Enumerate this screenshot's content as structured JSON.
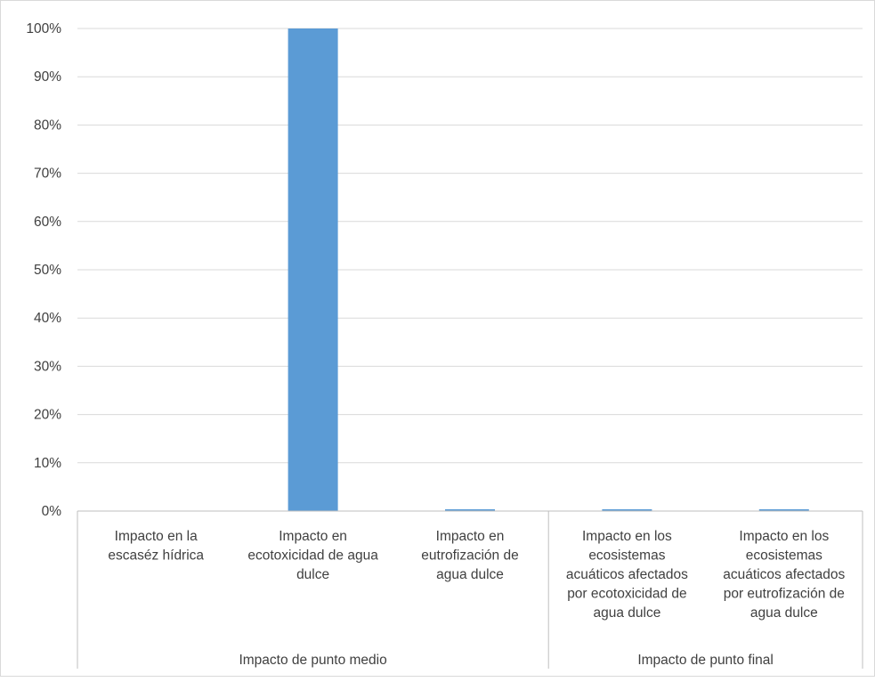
{
  "chart_data": {
    "type": "bar",
    "categories": [
      [
        "Impacto en la",
        "escaséz hídrica"
      ],
      [
        "Impacto en",
        "ecotoxicidad de agua",
        "dulce"
      ],
      [
        "Impacto en",
        "eutrofización de",
        "agua dulce"
      ],
      [
        "Impacto en los",
        "ecosistemas",
        "acuáticos afectados",
        "por ecotoxicidad de",
        "agua dulce"
      ],
      [
        "Impacto en los",
        "ecosistemas",
        "acuáticos afectados",
        "por eutrofización de",
        "agua dulce"
      ]
    ],
    "values": [
      0,
      1.0,
      0.003,
      0.003,
      0.003
    ],
    "groups": [
      {
        "label": "Impacto de punto medio",
        "count": 3
      },
      {
        "label": "Impacto de punto final",
        "count": 2
      }
    ],
    "yticks": [
      "0%",
      "10%",
      "20%",
      "30%",
      "40%",
      "50%",
      "60%",
      "70%",
      "80%",
      "90%",
      "100%"
    ],
    "ylim": [
      0,
      1
    ],
    "grid": true,
    "legend": "none",
    "title": "",
    "xlabel": "",
    "ylabel": "",
    "colors": {
      "bar": "#5b9bd5",
      "grid": "#d9d9d9",
      "axis": "#bfbfbf",
      "text": "#404040"
    }
  }
}
